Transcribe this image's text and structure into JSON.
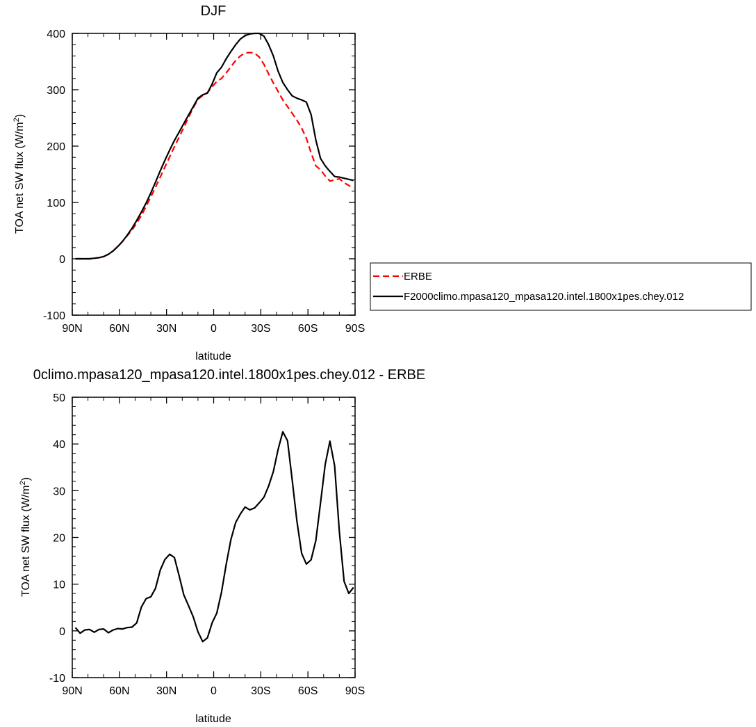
{
  "chart_data": [
    {
      "type": "line",
      "title": "DJF",
      "xlabel": "latitude",
      "ylabel": "TOA net SW flux (W/m",
      "ylabel_sup": "2",
      "ylabel_close": ")",
      "xlim": [
        90,
        -90
      ],
      "ylim": [
        -100,
        400
      ],
      "x_ticks": [
        90,
        60,
        30,
        0,
        -30,
        -60,
        -90
      ],
      "x_tick_labels": [
        "90N",
        "60N",
        "30N",
        "0",
        "30S",
        "60S",
        "90S"
      ],
      "y_ticks": [
        -100,
        0,
        100,
        200,
        300,
        400
      ],
      "y_tick_labels": [
        "-100",
        "0",
        "100",
        "200",
        "300",
        "400"
      ],
      "legend_position": "right",
      "series": [
        {
          "name": "ERBE",
          "color": "#ff0000",
          "dashed": true,
          "x": [
            88,
            85,
            82,
            79,
            76,
            73,
            70,
            67,
            64,
            61,
            58,
            55,
            52,
            49,
            46,
            43,
            40,
            37,
            34,
            31,
            28,
            25,
            22,
            19,
            16,
            13,
            10,
            7,
            4,
            1,
            -2,
            -5,
            -8,
            -11,
            -14,
            -17,
            -20,
            -23,
            -26,
            -29,
            -32,
            -35,
            -38,
            -41,
            -44,
            -47,
            -50,
            -53,
            -56,
            -59,
            -62,
            -65,
            -68,
            -71,
            -74,
            -77,
            -80,
            -83,
            -86,
            -89
          ],
          "y": [
            0,
            0,
            0,
            0,
            1,
            2,
            4,
            8,
            14,
            22,
            31,
            41,
            51,
            63,
            77,
            93,
            110,
            127,
            145,
            163,
            181,
            199,
            216,
            233,
            251,
            268,
            283,
            290,
            295,
            305,
            315,
            320,
            330,
            341,
            352,
            360,
            365,
            366,
            365,
            358,
            345,
            328,
            312,
            297,
            282,
            270,
            258,
            246,
            232,
            214,
            188,
            165,
            158,
            147,
            138,
            140,
            142,
            135,
            130,
            125
          ]
        },
        {
          "name": "F2000climo.mpasa120_mpasa120.intel.1800x1pes.chey.012",
          "color": "#000000",
          "dashed": false,
          "x": [
            88,
            85,
            82,
            79,
            76,
            73,
            70,
            67,
            64,
            61,
            58,
            55,
            52,
            49,
            46,
            43,
            40,
            37,
            34,
            31,
            28,
            25,
            22,
            19,
            16,
            13,
            10,
            7,
            4,
            1,
            -2,
            -5,
            -8,
            -11,
            -14,
            -17,
            -20,
            -23,
            -26,
            -29,
            -32,
            -35,
            -38,
            -41,
            -44,
            -47,
            -50,
            -53,
            -56,
            -59,
            -62,
            -65,
            -68,
            -71,
            -74,
            -77,
            -80,
            -83,
            -86,
            -89
          ],
          "y": [
            0,
            0,
            0,
            0,
            1,
            2,
            4,
            8,
            14,
            22,
            31,
            42,
            54,
            68,
            83,
            99,
            117,
            136,
            156,
            175,
            193,
            210,
            225,
            240,
            255,
            270,
            285,
            291,
            294,
            310,
            330,
            340,
            355,
            368,
            380,
            390,
            396,
            399,
            400,
            400,
            395,
            380,
            360,
            333,
            313,
            300,
            289,
            285,
            282,
            278,
            256,
            211,
            178,
            165,
            155,
            146,
            145,
            143,
            141,
            139
          ]
        }
      ]
    },
    {
      "type": "line",
      "title": "0climo.mpasa120_mpasa120.intel.1800x1pes.chey.012 - ERBE",
      "xlabel": "latitude",
      "ylabel": "TOA net SW flux (W/m",
      "ylabel_sup": "2",
      "ylabel_close": ")",
      "xlim": [
        90,
        -90
      ],
      "ylim": [
        -10,
        50
      ],
      "x_ticks": [
        90,
        60,
        30,
        0,
        -30,
        -60,
        -90
      ],
      "x_tick_labels": [
        "90N",
        "60N",
        "30N",
        "0",
        "30S",
        "60S",
        "90S"
      ],
      "y_ticks": [
        -10,
        0,
        10,
        20,
        30,
        40,
        50
      ],
      "y_tick_labels": [
        "-10",
        "0",
        "10",
        "20",
        "30",
        "40",
        "50"
      ],
      "series": [
        {
          "color": "#000000",
          "dashed": false,
          "x": [
            88,
            85,
            82,
            79,
            76,
            73,
            70,
            67,
            64,
            61,
            58,
            55,
            52,
            49,
            46,
            43,
            40,
            37,
            34,
            31,
            28,
            25,
            22,
            19,
            16,
            13,
            10,
            7,
            4,
            1,
            -2,
            -5,
            -8,
            -11,
            -14,
            -17,
            -20,
            -23,
            -26,
            -29,
            -32,
            -35,
            -38,
            -41,
            -44,
            -47,
            -50,
            -53,
            -56,
            -59,
            -62,
            -65,
            -68,
            -71,
            -74,
            -77,
            -80,
            -83,
            -86,
            -89
          ],
          "y": [
            0.7,
            -0.5,
            0.2,
            0.3,
            -0.3,
            0.3,
            0.4,
            -0.4,
            0.2,
            0.5,
            0.4,
            0.7,
            0.8,
            1.7,
            5.1,
            6.9,
            7.3,
            9.1,
            13,
            15.3,
            16.4,
            15.7,
            11.8,
            7.7,
            5.4,
            3.0,
            -0.2,
            -2.3,
            -1.5,
            1.7,
            3.8,
            8.3,
            14.3,
            19.6,
            23.2,
            25,
            26.5,
            25.9,
            26.3,
            27.4,
            28.6,
            31,
            34.1,
            38.8,
            42.6,
            40.7,
            32.2,
            23.5,
            16.6,
            14.3,
            15.2,
            19.3,
            27.4,
            35.6,
            40.6,
            35.3,
            21.2,
            10.6,
            8.0,
            9.3
          ]
        }
      ]
    }
  ]
}
